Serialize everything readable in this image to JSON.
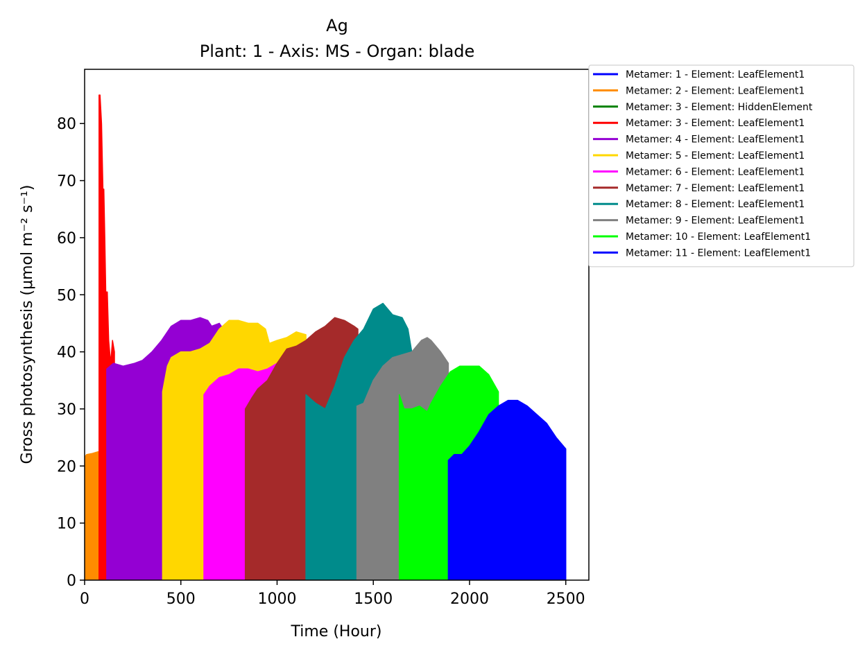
{
  "chart_data": {
    "type": "area",
    "title": "Ag",
    "subtitle": "Plant: 1 - Axis: MS - Organ: blade",
    "xlabel": "Time (Hour)",
    "ylabel": "Gross photosynthesis (μmol m⁻² s⁻¹)",
    "xlim": [
      0,
      2620
    ],
    "ylim": [
      0,
      89.5
    ],
    "xticks": [
      0,
      500,
      1000,
      1500,
      2000,
      2500
    ],
    "yticks": [
      0,
      10,
      20,
      30,
      40,
      50,
      60,
      70,
      80
    ],
    "grid": false,
    "legend_position": "outside right, top",
    "series": [
      {
        "name": "Metamer: 1 - Element: LeafElement1",
        "color": "#0000ff",
        "x": [
          0,
          2
        ],
        "y": [
          0,
          0
        ]
      },
      {
        "name": "Metamer: 2 - Element: LeafElement1",
        "color": "#ff8c00",
        "x": [
          0,
          10,
          40,
          70,
          90,
          100
        ],
        "y": [
          21.5,
          22,
          22.2,
          22.5,
          22,
          0
        ]
      },
      {
        "name": "Metamer: 3 - Element: HiddenElement",
        "color": "#008000",
        "x": [
          0,
          2
        ],
        "y": [
          0,
          0
        ]
      },
      {
        "name": "Metamer: 3 - Element: LeafElement1",
        "color": "#ff0000",
        "x": [
          75,
          80,
          88,
          95,
          100,
          105,
          110,
          118,
          125,
          135,
          145,
          155
        ],
        "y": [
          85,
          85,
          80,
          68.5,
          68.5,
          60,
          50.5,
          50.5,
          42,
          38,
          42,
          40
        ]
      },
      {
        "name": "Metamer: 4 - Element: LeafElement1",
        "color": "#9400d3",
        "x": [
          115,
          150,
          200,
          260,
          300,
          350,
          400,
          450,
          500,
          550,
          600,
          640,
          660,
          700,
          720
        ],
        "y": [
          37,
          38,
          37.5,
          38,
          38.5,
          40,
          42,
          44.5,
          45.5,
          45.5,
          46,
          45.5,
          44.5,
          45,
          44
        ]
      },
      {
        "name": "Metamer: 5 - Element: LeafElement1",
        "color": "#ffd700",
        "x": [
          405,
          430,
          450,
          500,
          550,
          600,
          650,
          700,
          750,
          800,
          850,
          900,
          940,
          960,
          1000,
          1050,
          1100,
          1150
        ],
        "y": [
          33,
          37.5,
          39,
          40,
          40,
          40.5,
          41.5,
          44,
          45.5,
          45.5,
          45,
          45,
          44,
          41.5,
          42,
          42.5,
          43.5,
          43
        ]
      },
      {
        "name": "Metamer: 6 - Element: LeafElement1",
        "color": "#ff00ff",
        "x": [
          620,
          650,
          700,
          750,
          800,
          850,
          900,
          950,
          1000,
          1050,
          1100
        ],
        "y": [
          32.5,
          34,
          35.5,
          36,
          37,
          37,
          36.5,
          37,
          38,
          39.5,
          40
        ]
      },
      {
        "name": "Metamer: 7 - Element: LeafElement1",
        "color": "#a52a2a",
        "x": [
          835,
          870,
          900,
          950,
          1000,
          1050,
          1100,
          1150,
          1200,
          1250,
          1300,
          1350,
          1400,
          1420
        ],
        "y": [
          30,
          32,
          33.5,
          35,
          38,
          40.5,
          41,
          42,
          43.5,
          44.5,
          46,
          45.5,
          44.5,
          44
        ]
      },
      {
        "name": "Metamer: 8 - Element: LeafElement1",
        "color": "#008b8b",
        "x": [
          1150,
          1200,
          1250,
          1300,
          1350,
          1400,
          1450,
          1500,
          1550,
          1600,
          1650,
          1680,
          1700
        ],
        "y": [
          32.5,
          31,
          30,
          34,
          39,
          42,
          44,
          47.5,
          48.5,
          46.5,
          46,
          44,
          40
        ]
      },
      {
        "name": "Metamer: 9 - Element: LeafElement1",
        "color": "#808080",
        "x": [
          1415,
          1450,
          1500,
          1550,
          1600,
          1650,
          1700,
          1750,
          1780,
          1800,
          1850,
          1890
        ],
        "y": [
          30.5,
          31,
          35,
          37.5,
          39,
          39.5,
          40,
          42,
          42.5,
          42,
          40,
          38
        ]
      },
      {
        "name": "Metamer: 10 - Element: LeafElement1",
        "color": "#00ff00",
        "x": [
          1635,
          1660,
          1700,
          1740,
          1780,
          1800,
          1850,
          1900,
          1950,
          2000,
          2050,
          2100,
          2150
        ],
        "y": [
          32.5,
          30,
          30,
          30.5,
          29.5,
          31,
          34,
          36.5,
          37.5,
          37.5,
          37.5,
          36,
          33
        ]
      },
      {
        "name": "Metamer: 11 - Element: LeafElement1",
        "color": "#0000ff",
        "x": [
          1890,
          1920,
          1960,
          2000,
          2050,
          2100,
          2150,
          2200,
          2250,
          2300,
          2350,
          2400,
          2450,
          2500
        ],
        "y": [
          21,
          22,
          22,
          23.5,
          26,
          29,
          30.5,
          31.5,
          31.5,
          30.5,
          29,
          27.5,
          25,
          23
        ]
      }
    ]
  }
}
